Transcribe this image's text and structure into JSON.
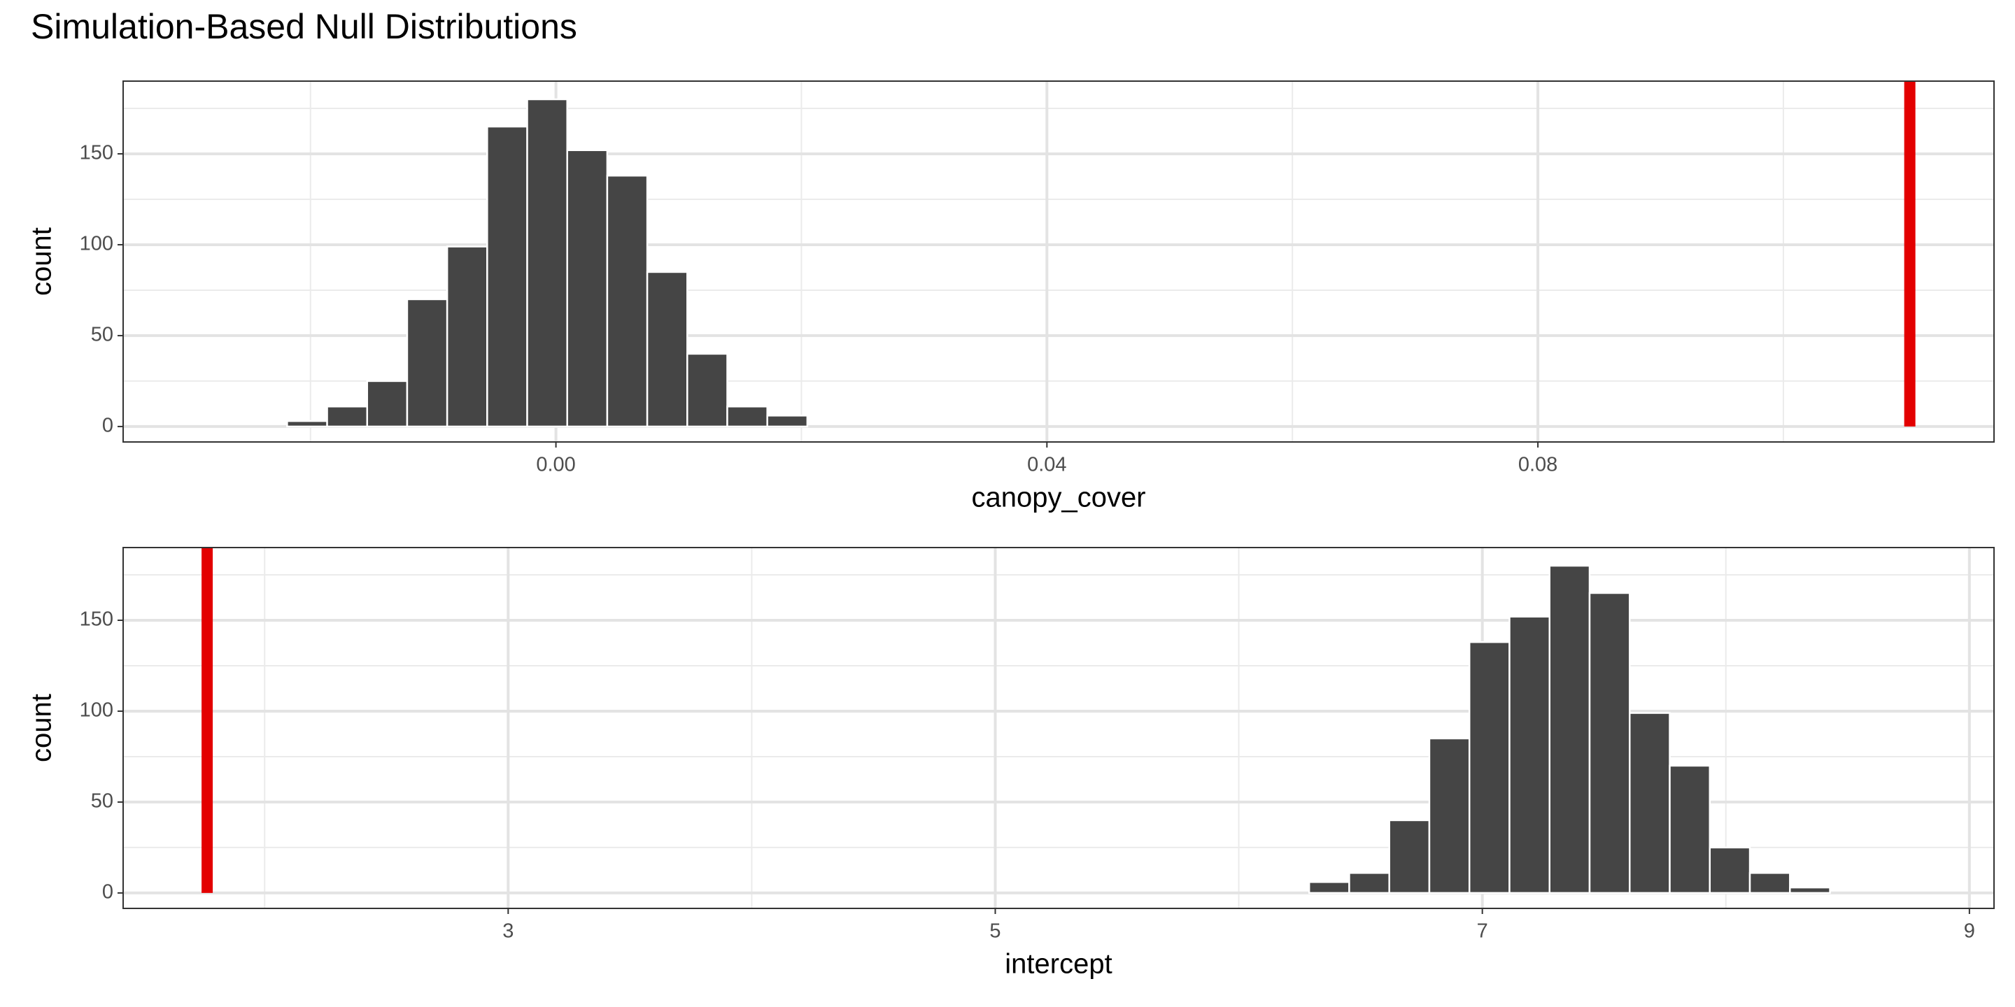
{
  "title": "Simulation-Based Null Distributions",
  "chart_data": [
    {
      "type": "histogram",
      "x_label": "canopy_cover",
      "y_label": "count",
      "bins": [
        -0.0219,
        -0.01864,
        -0.01538,
        -0.01212,
        -0.00886,
        -0.0056,
        -0.00234,
        0.00092,
        0.00418,
        0.00744,
        0.0107,
        0.01396,
        0.01722,
        0.02048
      ],
      "values": [
        3,
        11,
        25,
        70,
        99,
        165,
        180,
        152,
        138,
        85,
        40,
        11,
        6
      ],
      "color": "#454545",
      "observed": 0.1103,
      "observed_color": "#e30000",
      "xlim": [
        -0.03526,
        0.11716
      ],
      "xticks": [
        {
          "value": 0,
          "label": "0.00"
        },
        0.04,
        0.08
      ],
      "ylim": [
        -8.5,
        190
      ],
      "yticks": [
        0,
        50,
        100,
        150
      ],
      "grid": true
    },
    {
      "type": "histogram",
      "x_label": "intercept",
      "y_label": "count",
      "bins": [
        6.289,
        6.4535,
        6.618,
        6.7825,
        6.947,
        7.1115,
        7.276,
        7.4405,
        7.605,
        7.7695,
        7.934,
        8.0985,
        8.263,
        8.4275
      ],
      "values": [
        6,
        11,
        40,
        85,
        138,
        152,
        180,
        165,
        99,
        70,
        25,
        11,
        3
      ],
      "color": "#454545",
      "observed": 1.764,
      "observed_color": "#e30000",
      "xlim": [
        1.419,
        9.101
      ],
      "xticks": [
        3,
        5,
        7,
        9
      ],
      "ylim": [
        -8.5,
        190
      ],
      "yticks": [
        0,
        50,
        100,
        150
      ],
      "grid": true
    }
  ]
}
